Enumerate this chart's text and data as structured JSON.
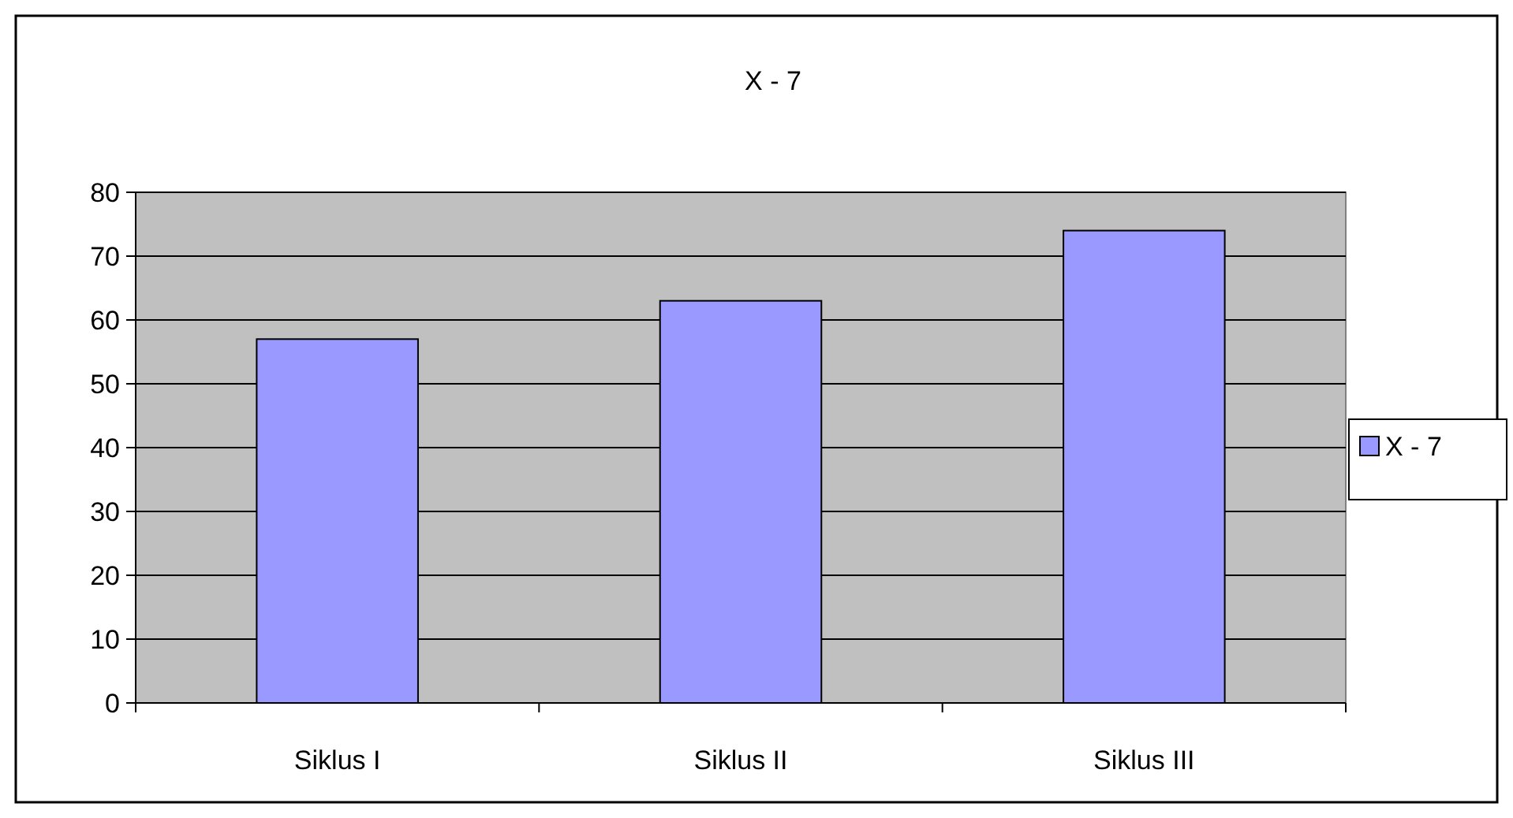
{
  "chart_data": {
    "type": "bar",
    "title": "X - 7",
    "categories": [
      "Siklus I",
      "Siklus II",
      "Siklus III"
    ],
    "series": [
      {
        "name": "X - 7",
        "color": "#9999ff",
        "values": [
          57,
          63,
          74
        ]
      }
    ],
    "ylim": [
      0,
      80
    ],
    "yticks": [
      0,
      10,
      20,
      30,
      40,
      50,
      60,
      70,
      80
    ],
    "grid": "y",
    "legend": "right"
  }
}
